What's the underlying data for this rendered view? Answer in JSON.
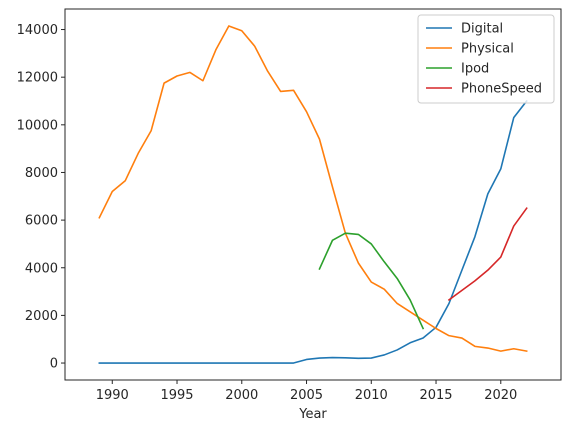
{
  "chart_data": {
    "type": "line",
    "title": "",
    "xlabel": "Year",
    "ylabel": "",
    "xlim": [
      1986.35,
      2024.65
    ],
    "ylim": [
      -712,
      14862
    ],
    "xticks": [
      1990,
      1995,
      2000,
      2005,
      2010,
      2015,
      2020
    ],
    "yticks": [
      0,
      2000,
      4000,
      6000,
      8000,
      10000,
      12000,
      14000
    ],
    "grid": false,
    "legend_position": "top-right",
    "series": [
      {
        "name": "Digital",
        "color": "#1f77b4",
        "x": [
          1989,
          1990,
          1991,
          1992,
          1993,
          1994,
          1995,
          1996,
          1997,
          1998,
          1999,
          2000,
          2001,
          2002,
          2003,
          2004,
          2005,
          2006,
          2007,
          2008,
          2009,
          2010,
          2011,
          2012,
          2013,
          2014,
          2015,
          2016,
          2017,
          2018,
          2019,
          2020,
          2021,
          2022
        ],
        "y": [
          0,
          0,
          0,
          0,
          0,
          0,
          0,
          0,
          0,
          0,
          0,
          0,
          0,
          0,
          0,
          0,
          150,
          210,
          230,
          220,
          200,
          210,
          340,
          550,
          850,
          1050,
          1500,
          2500,
          3900,
          5300,
          7100,
          8150,
          10300,
          11000
        ]
      },
      {
        "name": "Physical",
        "color": "#ff7f0e",
        "x": [
          1989,
          1990,
          1991,
          1992,
          1993,
          1994,
          1995,
          1996,
          1997,
          1998,
          1999,
          2000,
          2001,
          2002,
          2003,
          2004,
          2005,
          2006,
          2007,
          2008,
          2009,
          2010,
          2011,
          2012,
          2013,
          2014,
          2015,
          2016,
          2017,
          2018,
          2019,
          2020,
          2021,
          2022
        ],
        "y": [
          6100,
          7200,
          7650,
          8800,
          9750,
          11750,
          12050,
          12200,
          11850,
          13150,
          14150,
          13950,
          13300,
          12250,
          11400,
          11450,
          10550,
          9400,
          7400,
          5450,
          4200,
          3400,
          3100,
          2500,
          2150,
          1800,
          1450,
          1150,
          1050,
          700,
          630,
          500,
          600,
          500
        ]
      },
      {
        "name": "Ipod",
        "color": "#2ca02c",
        "x": [
          2006,
          2007,
          2008,
          2009,
          2010,
          2011,
          2012,
          2013,
          2014
        ],
        "y": [
          3950,
          5150,
          5450,
          5400,
          5000,
          4250,
          3550,
          2650,
          1450
        ]
      },
      {
        "name": "PhoneSpeed",
        "color": "#d62728",
        "x": [
          2016,
          2017,
          2018,
          2019,
          2020,
          2021,
          2022
        ],
        "y": [
          2650,
          3050,
          3450,
          3900,
          4450,
          5750,
          6500
        ]
      }
    ]
  }
}
